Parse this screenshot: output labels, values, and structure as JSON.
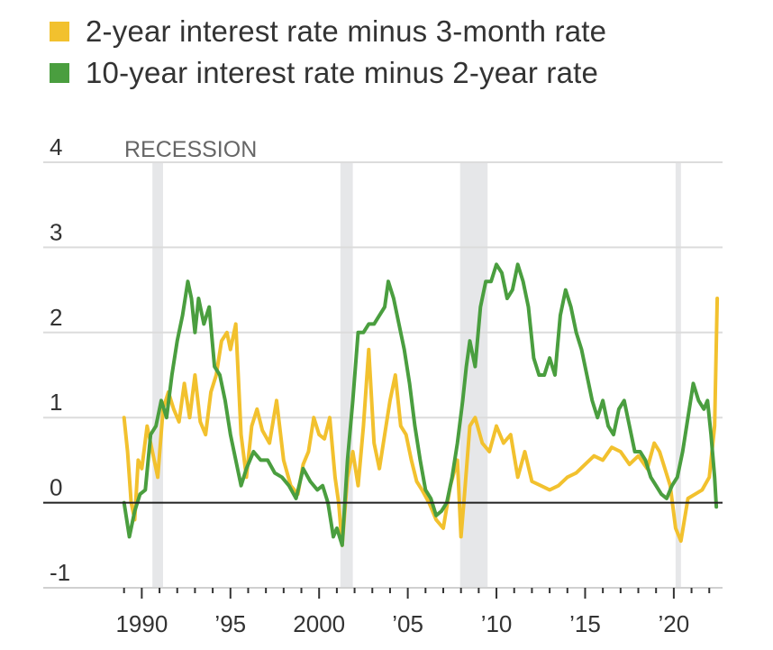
{
  "legend": [
    {
      "label": "2-year interest rate minus 3-month rate",
      "color": "#f2c12e"
    },
    {
      "label": "10-year interest rate minus 2-year rate",
      "color": "#4a9e3f"
    }
  ],
  "chart_data": {
    "type": "line",
    "title": "",
    "xlabel": "",
    "ylabel": "",
    "xlim": [
      1988,
      2022.8
    ],
    "ylim": [
      -1,
      4
    ],
    "recession_label": "RECESSION",
    "recessions": [
      [
        1990.6,
        1991.2
      ],
      [
        2001.2,
        2001.9
      ],
      [
        2007.95,
        2009.5
      ],
      [
        2020.1,
        2020.35
      ]
    ],
    "y_ticks": [
      {
        "value": 4,
        "label": "4"
      },
      {
        "value": 3,
        "label": "3"
      },
      {
        "value": 2,
        "label": "2"
      },
      {
        "value": 1,
        "label": "1"
      },
      {
        "value": 0,
        "label": "0"
      },
      {
        "value": -1,
        "label": "-1"
      }
    ],
    "x_ticks": [
      {
        "value": 1990,
        "label": "1990"
      },
      {
        "value": 1995,
        "label": "’95"
      },
      {
        "value": 2000,
        "label": "2000"
      },
      {
        "value": 2005,
        "label": "’05"
      },
      {
        "value": 2010,
        "label": "’10"
      },
      {
        "value": 2015,
        "label": "’15"
      },
      {
        "value": 2020,
        "label": "’20"
      }
    ],
    "series": [
      {
        "name": "2-year interest rate minus 3-month rate",
        "color": "#f2c12e",
        "x": [
          1989.0,
          1989.2,
          1989.4,
          1989.6,
          1989.8,
          1990.0,
          1990.3,
          1990.6,
          1990.9,
          1991.2,
          1991.5,
          1991.8,
          1992.1,
          1992.4,
          1992.7,
          1993.0,
          1993.3,
          1993.6,
          1993.9,
          1994.2,
          1994.5,
          1994.8,
          1995.0,
          1995.3,
          1995.6,
          1995.9,
          1996.2,
          1996.5,
          1996.8,
          1997.2,
          1997.6,
          1998.0,
          1998.4,
          1998.8,
          1999.1,
          1999.4,
          1999.7,
          2000.0,
          2000.3,
          2000.6,
          2000.9,
          2001.1,
          2001.3,
          2001.6,
          2001.9,
          2002.2,
          2002.5,
          2002.8,
          2003.1,
          2003.4,
          2003.7,
          2004.0,
          2004.3,
          2004.6,
          2004.9,
          2005.2,
          2005.5,
          2005.8,
          2006.2,
          2006.6,
          2007.0,
          2007.4,
          2007.8,
          2008.0,
          2008.2,
          2008.5,
          2008.8,
          2009.2,
          2009.6,
          2010.0,
          2010.4,
          2010.8,
          2011.2,
          2011.6,
          2012.0,
          2012.5,
          2013.0,
          2013.5,
          2014.0,
          2014.5,
          2015.0,
          2015.5,
          2016.0,
          2016.5,
          2017.0,
          2017.5,
          2018.0,
          2018.5,
          2018.9,
          2019.2,
          2019.5,
          2019.8,
          2020.1,
          2020.4,
          2020.8,
          2021.2,
          2021.6,
          2022.0,
          2022.3,
          2022.45
        ],
        "y": [
          1.0,
          0.6,
          0.0,
          -0.2,
          0.5,
          0.4,
          0.9,
          0.6,
          0.3,
          1.1,
          1.3,
          1.1,
          0.95,
          1.4,
          1.0,
          1.5,
          0.95,
          0.8,
          1.3,
          1.5,
          1.9,
          2.0,
          1.8,
          2.1,
          0.8,
          0.3,
          0.9,
          1.1,
          0.85,
          0.7,
          1.2,
          0.5,
          0.2,
          0.1,
          0.45,
          0.6,
          1.0,
          0.8,
          0.75,
          1.0,
          0.3,
          0.0,
          -0.5,
          0.3,
          0.6,
          0.2,
          0.9,
          1.8,
          0.7,
          0.4,
          0.8,
          1.2,
          1.5,
          0.9,
          0.8,
          0.5,
          0.25,
          0.15,
          0.0,
          -0.2,
          -0.3,
          0.2,
          0.5,
          -0.4,
          0.1,
          0.9,
          1.0,
          0.7,
          0.6,
          0.9,
          0.7,
          0.8,
          0.3,
          0.6,
          0.25,
          0.2,
          0.15,
          0.2,
          0.3,
          0.35,
          0.45,
          0.55,
          0.5,
          0.65,
          0.6,
          0.45,
          0.55,
          0.4,
          0.7,
          0.6,
          0.4,
          0.2,
          -0.3,
          -0.45,
          0.05,
          0.1,
          0.15,
          0.3,
          0.9,
          2.4
        ]
      },
      {
        "name": "10-year interest rate minus 2-year rate",
        "color": "#4a9e3f",
        "x": [
          1989.0,
          1989.3,
          1989.6,
          1989.9,
          1990.2,
          1990.5,
          1990.8,
          1991.1,
          1991.4,
          1991.7,
          1992.0,
          1992.3,
          1992.6,
          1992.8,
          1993.0,
          1993.2,
          1993.5,
          1993.8,
          1994.1,
          1994.4,
          1994.7,
          1995.0,
          1995.3,
          1995.6,
          1995.9,
          1996.3,
          1996.7,
          1997.1,
          1997.5,
          1997.9,
          1998.3,
          1998.7,
          1999.1,
          1999.5,
          1999.9,
          2000.2,
          2000.5,
          2000.8,
          2001.0,
          2001.3,
          2001.6,
          2001.9,
          2002.2,
          2002.5,
          2002.8,
          2003.1,
          2003.4,
          2003.7,
          2003.9,
          2004.2,
          2004.5,
          2004.8,
          2005.1,
          2005.4,
          2005.7,
          2006.0,
          2006.3,
          2006.6,
          2006.9,
          2007.2,
          2007.5,
          2007.8,
          2008.1,
          2008.3,
          2008.5,
          2008.8,
          2009.1,
          2009.4,
          2009.7,
          2010.0,
          2010.3,
          2010.6,
          2010.9,
          2011.2,
          2011.5,
          2011.8,
          2012.1,
          2012.4,
          2012.7,
          2013.0,
          2013.3,
          2013.6,
          2013.9,
          2014.2,
          2014.5,
          2014.8,
          2015.1,
          2015.4,
          2015.7,
          2016.0,
          2016.3,
          2016.6,
          2016.9,
          2017.2,
          2017.5,
          2017.8,
          2018.1,
          2018.4,
          2018.7,
          2019.0,
          2019.3,
          2019.6,
          2019.9,
          2020.2,
          2020.5,
          2020.8,
          2021.1,
          2021.4,
          2021.7,
          2021.9,
          2022.1,
          2022.3,
          2022.4
        ],
        "y": [
          0.0,
          -0.4,
          -0.1,
          0.1,
          0.15,
          0.8,
          0.9,
          1.2,
          1.0,
          1.5,
          1.9,
          2.2,
          2.6,
          2.4,
          2.0,
          2.4,
          2.1,
          2.3,
          1.6,
          1.5,
          1.2,
          0.8,
          0.5,
          0.2,
          0.4,
          0.6,
          0.5,
          0.5,
          0.35,
          0.3,
          0.2,
          0.05,
          0.4,
          0.25,
          0.15,
          0.2,
          0.0,
          -0.4,
          -0.3,
          -0.5,
          0.5,
          1.2,
          2.0,
          2.0,
          2.1,
          2.1,
          2.2,
          2.3,
          2.6,
          2.4,
          2.1,
          1.8,
          1.4,
          0.9,
          0.5,
          0.15,
          0.05,
          -0.15,
          -0.1,
          0.0,
          0.3,
          0.7,
          1.2,
          1.6,
          1.9,
          1.6,
          2.3,
          2.6,
          2.6,
          2.8,
          2.7,
          2.4,
          2.5,
          2.8,
          2.6,
          2.3,
          1.7,
          1.5,
          1.5,
          1.7,
          1.5,
          2.2,
          2.5,
          2.3,
          2.0,
          1.8,
          1.5,
          1.2,
          1.0,
          1.2,
          0.9,
          0.8,
          1.1,
          1.2,
          0.9,
          0.6,
          0.6,
          0.5,
          0.3,
          0.2,
          0.1,
          0.05,
          0.2,
          0.3,
          0.6,
          1.0,
          1.4,
          1.2,
          1.1,
          1.2,
          0.8,
          0.3,
          -0.05
        ]
      }
    ]
  }
}
